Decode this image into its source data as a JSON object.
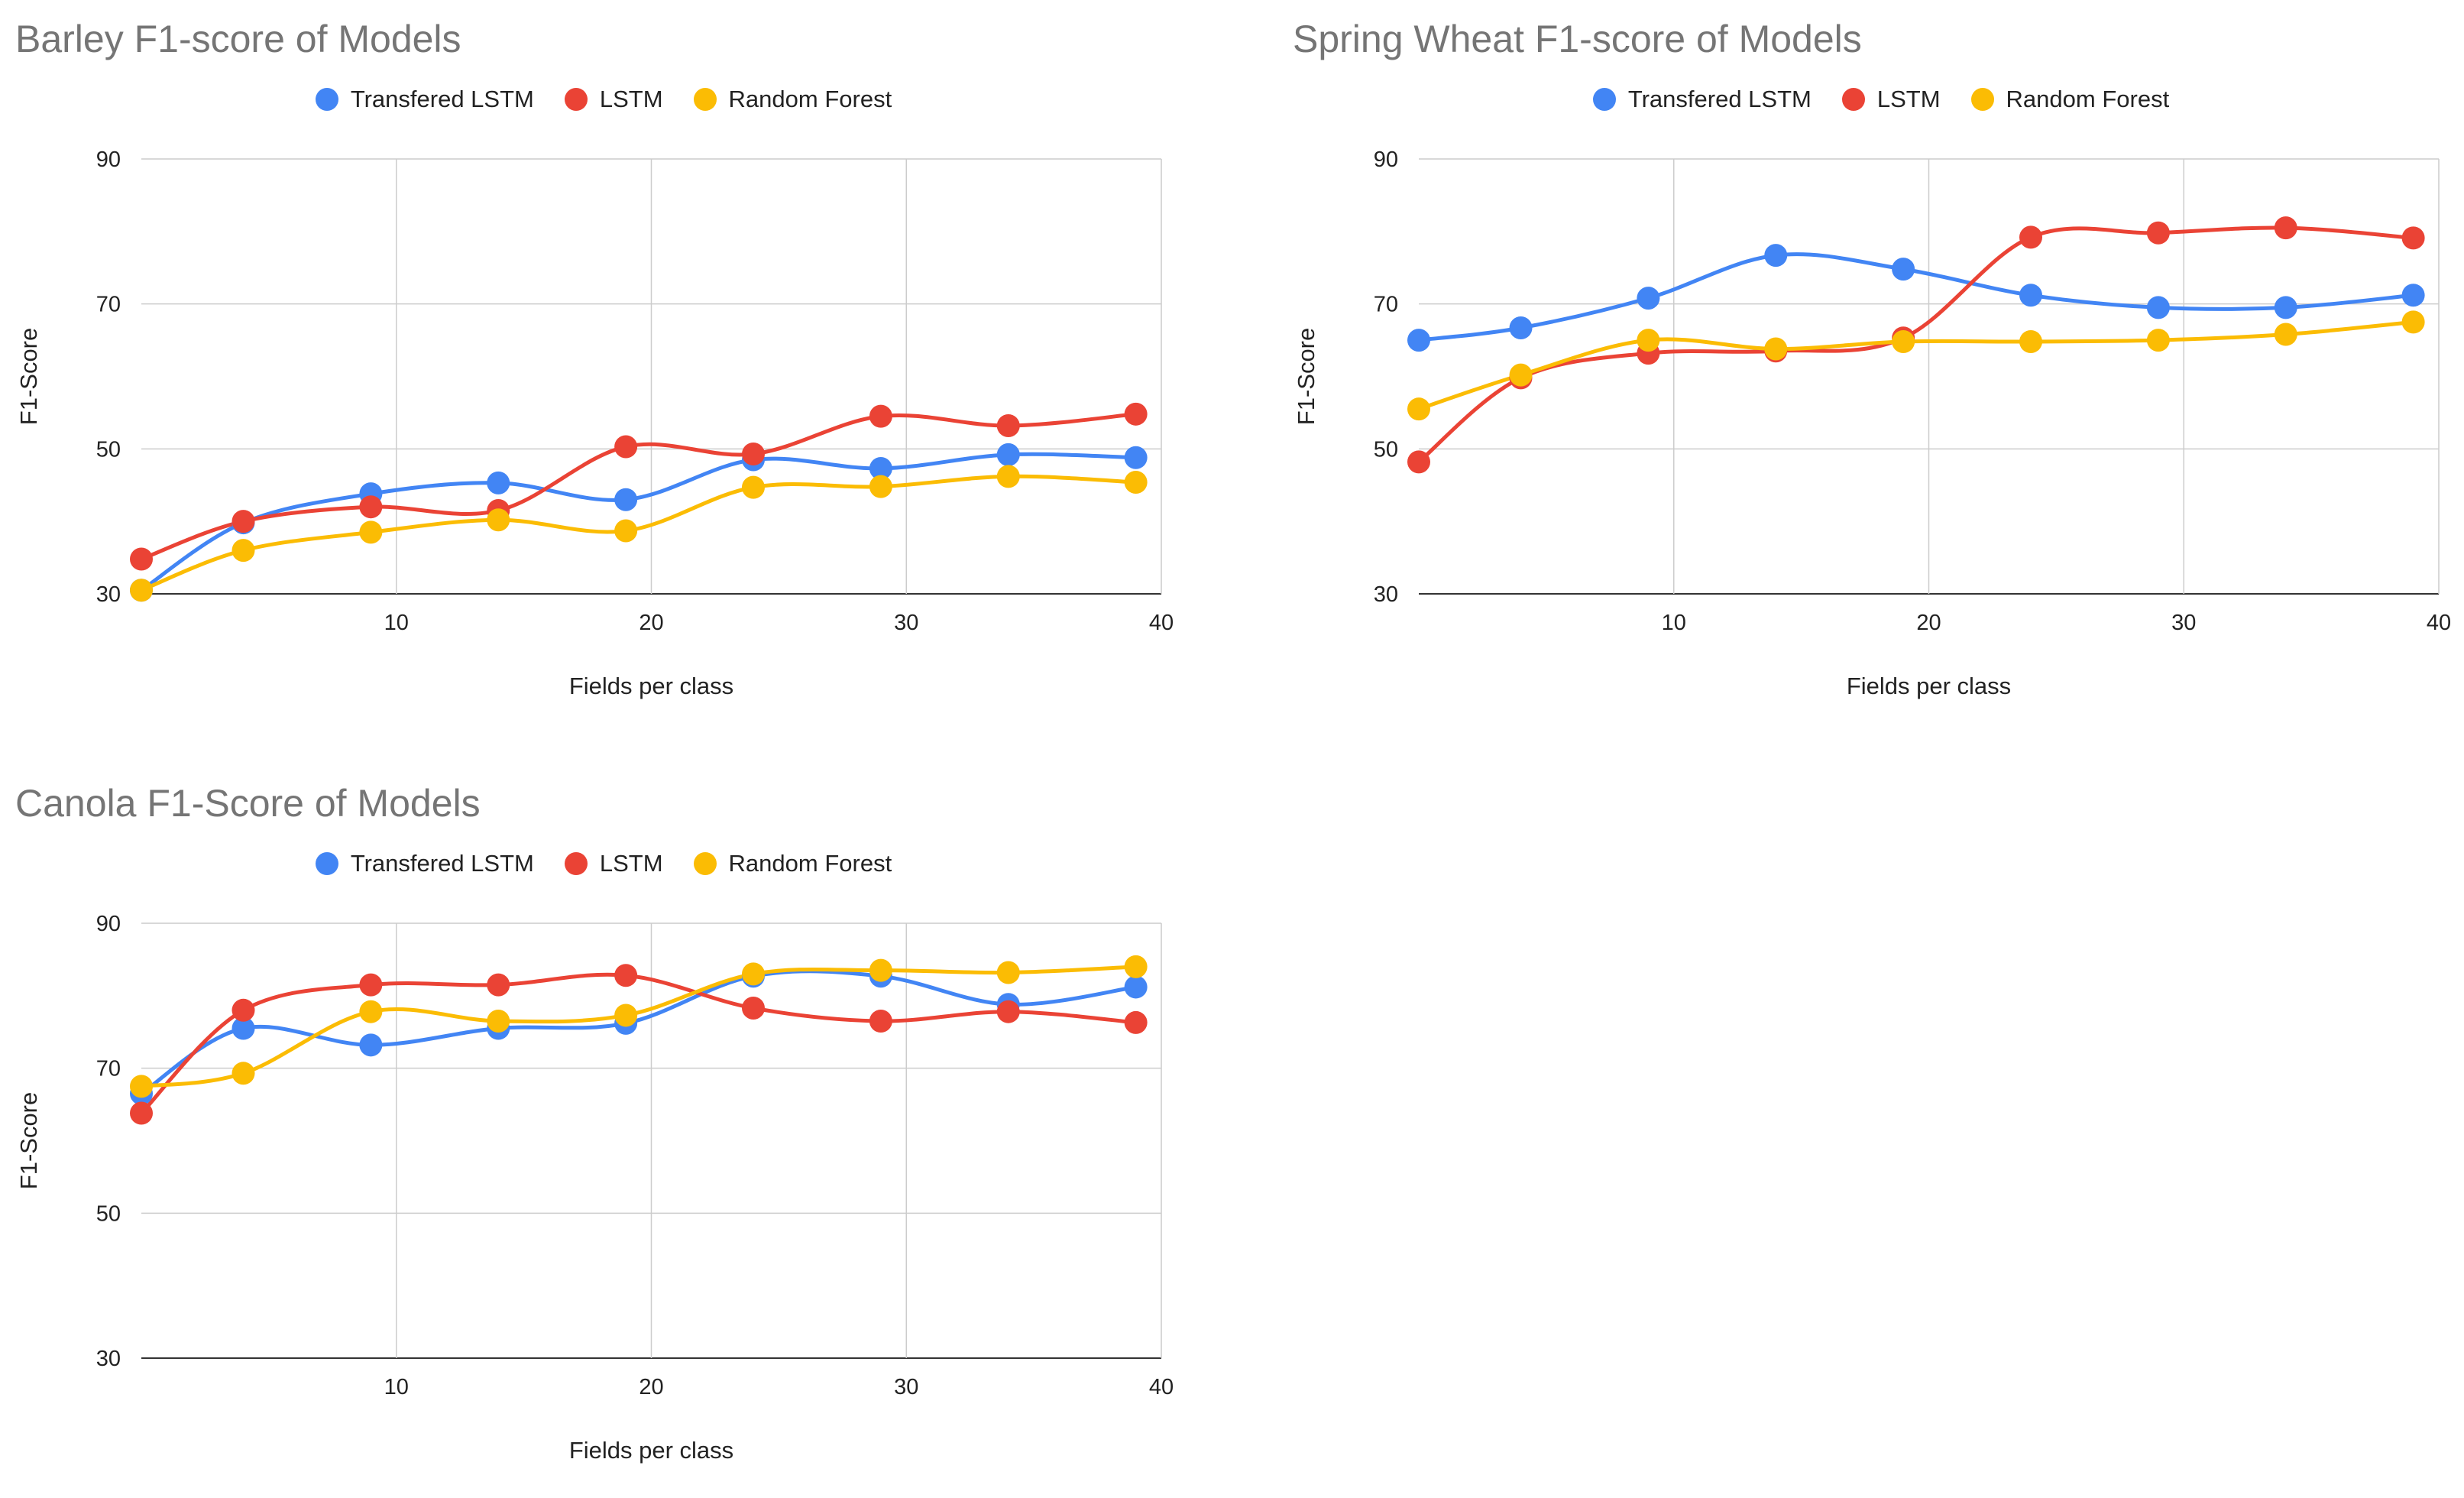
{
  "chart_data": [
    {
      "type": "line",
      "title": "Barley F1-score of Models",
      "xlabel": "Fields per class",
      "ylabel": "F1-Score",
      "xlim": [
        0,
        40
      ],
      "ylim": [
        30,
        90
      ],
      "xticks": [
        10,
        20,
        30,
        40
      ],
      "yticks": [
        30,
        50,
        70,
        90
      ],
      "x": [
        0,
        4,
        9,
        14,
        19,
        24,
        29,
        34,
        39
      ],
      "series": [
        {
          "name": "Transfered LSTM",
          "color": "#4285F4",
          "values": [
            30.5,
            39.8,
            43.8,
            45.3,
            43,
            48.5,
            47.3,
            49.2,
            48.8
          ]
        },
        {
          "name": "LSTM",
          "color": "#EA4335",
          "values": [
            34.8,
            40,
            42,
            41.5,
            50.3,
            49.3,
            54.5,
            53.2,
            54.8
          ]
        },
        {
          "name": "Random Forest",
          "color": "#FBBC04",
          "values": [
            30.5,
            36,
            38.5,
            40.2,
            38.7,
            44.7,
            44.8,
            46.2,
            45.4
          ]
        }
      ]
    },
    {
      "type": "line",
      "title": "Spring Wheat F1-score of Models",
      "xlabel": "Fields per class",
      "ylabel": "F1-Score",
      "xlim": [
        0,
        40
      ],
      "ylim": [
        30,
        90
      ],
      "xticks": [
        10,
        20,
        30,
        40
      ],
      "yticks": [
        30,
        50,
        70,
        90
      ],
      "x": [
        0,
        4,
        9,
        14,
        19,
        24,
        29,
        34,
        39
      ],
      "series": [
        {
          "name": "Transfered LSTM",
          "color": "#4285F4",
          "values": [
            65,
            66.7,
            70.8,
            76.7,
            74.8,
            71.2,
            69.5,
            69.5,
            71.2
          ]
        },
        {
          "name": "LSTM",
          "color": "#EA4335",
          "values": [
            48.2,
            59.8,
            63.2,
            63.5,
            65.3,
            79.2,
            79.8,
            80.5,
            79.1
          ]
        },
        {
          "name": "Random Forest",
          "color": "#FBBC04",
          "values": [
            55.5,
            60.2,
            65,
            63.8,
            64.8,
            64.8,
            65,
            65.8,
            67.5
          ]
        }
      ]
    },
    {
      "type": "line",
      "title": "Canola F1-Score of Models",
      "xlabel": "Fields per class",
      "ylabel": "F1-Score",
      "xlim": [
        0,
        40
      ],
      "ylim": [
        30,
        90
      ],
      "xticks": [
        10,
        20,
        30,
        40
      ],
      "yticks": [
        30,
        50,
        70,
        90
      ],
      "x": [
        0,
        4,
        9,
        14,
        19,
        24,
        29,
        34,
        39
      ],
      "series": [
        {
          "name": "Transfered LSTM",
          "color": "#4285F4",
          "values": [
            66.5,
            75.5,
            73.2,
            75.5,
            76.2,
            82.7,
            82.7,
            78.8,
            81.2
          ]
        },
        {
          "name": "LSTM",
          "color": "#EA4335",
          "values": [
            63.8,
            78,
            81.5,
            81.5,
            82.8,
            78.3,
            76.5,
            77.8,
            76.3
          ]
        },
        {
          "name": "Random Forest",
          "color": "#FBBC04",
          "values": [
            67.5,
            69.3,
            77.8,
            76.5,
            77.3,
            83,
            83.5,
            83.2,
            84
          ]
        }
      ]
    }
  ]
}
